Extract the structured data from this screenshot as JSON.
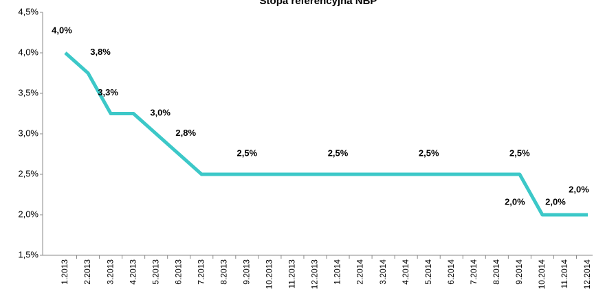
{
  "chart_data": {
    "type": "line",
    "title": "Stopa referencyjna NBP",
    "categories": [
      "1.2013",
      "2.2013",
      "3.2013",
      "4.2013",
      "5.2013",
      "6.2013",
      "7.2013",
      "8.2013",
      "9.2013",
      "10.2013",
      "11.2013",
      "12.2013",
      "1.2014",
      "2.2014",
      "3.2014",
      "4.2014",
      "5.2014",
      "6.2014",
      "7.2014",
      "8.2014",
      "9.2014",
      "10.2014",
      "11.2014",
      "12.2014"
    ],
    "series": [
      {
        "name": "Stopa referencyjna NBP",
        "color": "#3cc8c8",
        "values": [
          4.0,
          3.75,
          3.25,
          3.25,
          3.0,
          2.75,
          2.5,
          2.5,
          2.5,
          2.5,
          2.5,
          2.5,
          2.5,
          2.5,
          2.5,
          2.5,
          2.5,
          2.5,
          2.5,
          2.5,
          2.5,
          2.0,
          2.0,
          2.0
        ],
        "value_labels": [
          "4,0%",
          "3,8%",
          "3,3%",
          null,
          "3,0%",
          "2,8%",
          null,
          null,
          "2,5%",
          null,
          null,
          null,
          "2,5%",
          null,
          null,
          null,
          "2,5%",
          null,
          null,
          null,
          "2,5%",
          "2,0%",
          "2,0%",
          "2,0%"
        ]
      }
    ],
    "ylim": [
      1.5,
      4.5
    ],
    "yticks": [
      {
        "value": 1.5,
        "label": "1,5%"
      },
      {
        "value": 2.0,
        "label": "2,0%"
      },
      {
        "value": 2.5,
        "label": "2,5%"
      },
      {
        "value": 3.0,
        "label": "3,0%"
      },
      {
        "value": 3.5,
        "label": "3,5%"
      },
      {
        "value": 4.0,
        "label": "4,0%"
      },
      {
        "value": 4.5,
        "label": "4,5%"
      }
    ],
    "grid": false
  }
}
